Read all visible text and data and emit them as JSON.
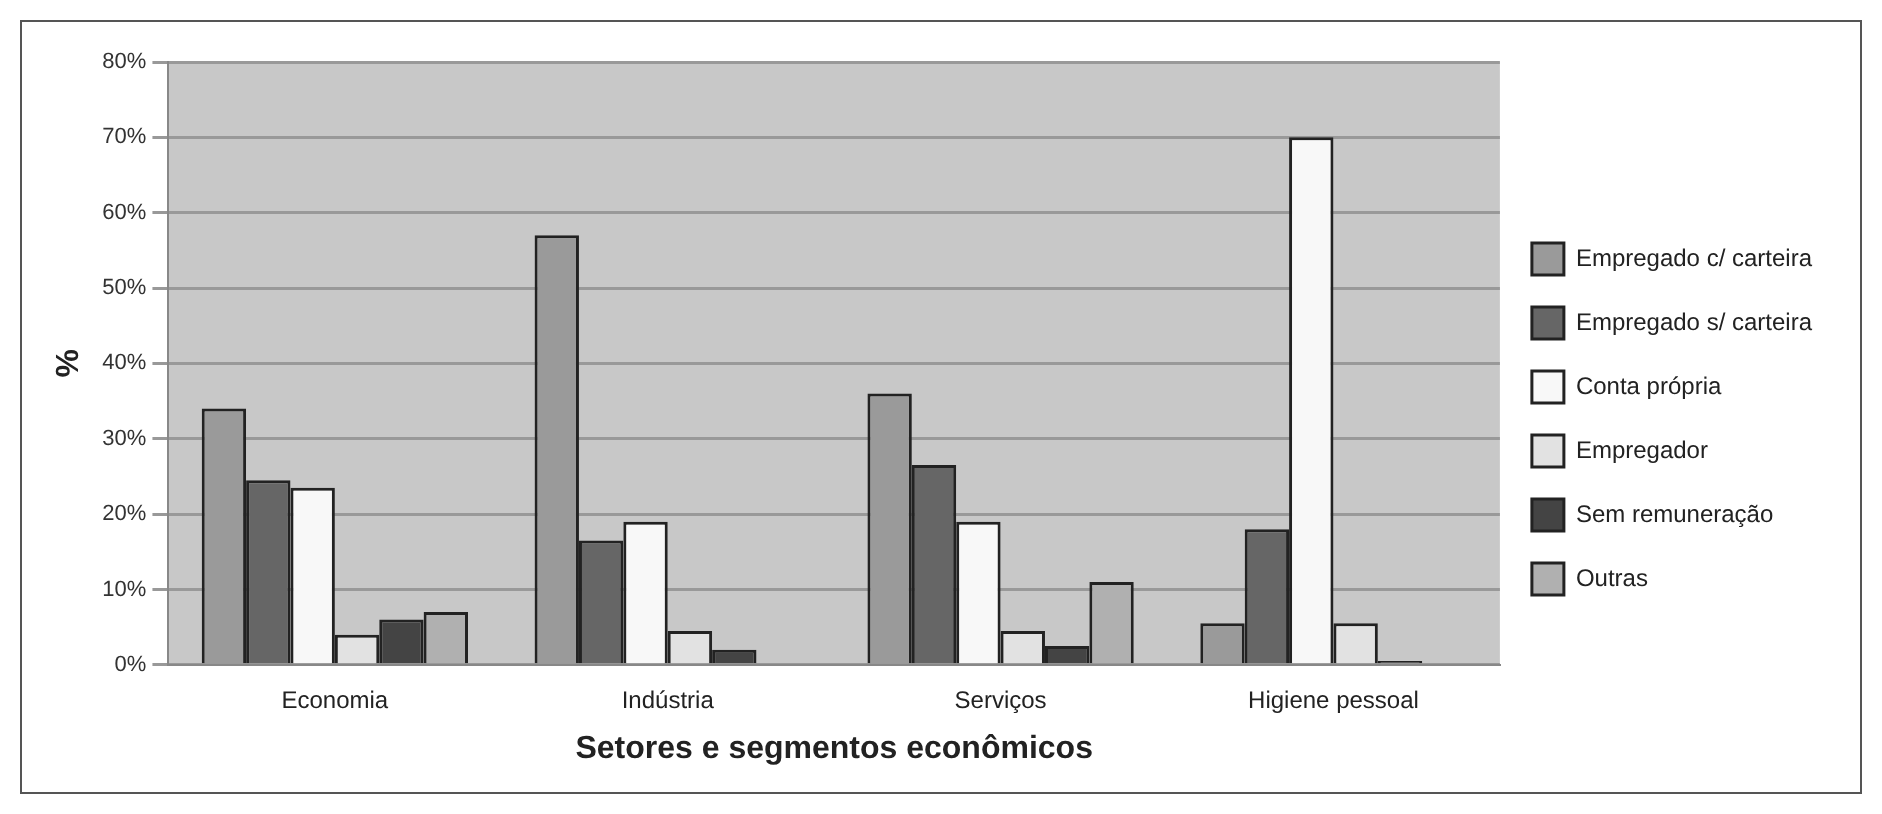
{
  "chart_data": {
    "type": "bar",
    "xlabel": "Setores e segmentos econômicos",
    "ylabel": "%",
    "categories": [
      "Economia",
      "Indústria",
      "Serviços",
      "Higiene pessoal"
    ],
    "series": [
      {
        "name": "Empregado c/ carteira",
        "color": "#9a9a9a",
        "values": [
          34,
          57,
          36,
          5.5
        ]
      },
      {
        "name": "Empregado s/ carteira",
        "color": "#666666",
        "values": [
          24.5,
          16.5,
          26.5,
          18
        ]
      },
      {
        "name": "Conta própria",
        "color": "#f8f8f8",
        "values": [
          23.5,
          19,
          19,
          70
        ]
      },
      {
        "name": "Empregador",
        "color": "#e2e2e2",
        "values": [
          4,
          4.5,
          4.5,
          5.5
        ]
      },
      {
        "name": "Sem remuneração",
        "color": "#444444",
        "values": [
          6,
          2,
          2.5,
          0.5
        ]
      },
      {
        "name": "Outras",
        "color": "#b0b0b0",
        "values": [
          7,
          null,
          11,
          null
        ]
      }
    ],
    "ylim": [
      0,
      80
    ],
    "yticks": [
      {
        "value": 0,
        "label": "0%"
      },
      {
        "value": 10,
        "label": "10%"
      },
      {
        "value": 20,
        "label": "20%"
      },
      {
        "value": 30,
        "label": "30%"
      },
      {
        "value": 40,
        "label": "40%"
      },
      {
        "value": 50,
        "label": "50%"
      },
      {
        "value": 60,
        "label": "60%"
      },
      {
        "value": 70,
        "label": "70%"
      },
      {
        "value": 80,
        "label": "80%"
      }
    ],
    "grid": "y",
    "legend": "right"
  }
}
